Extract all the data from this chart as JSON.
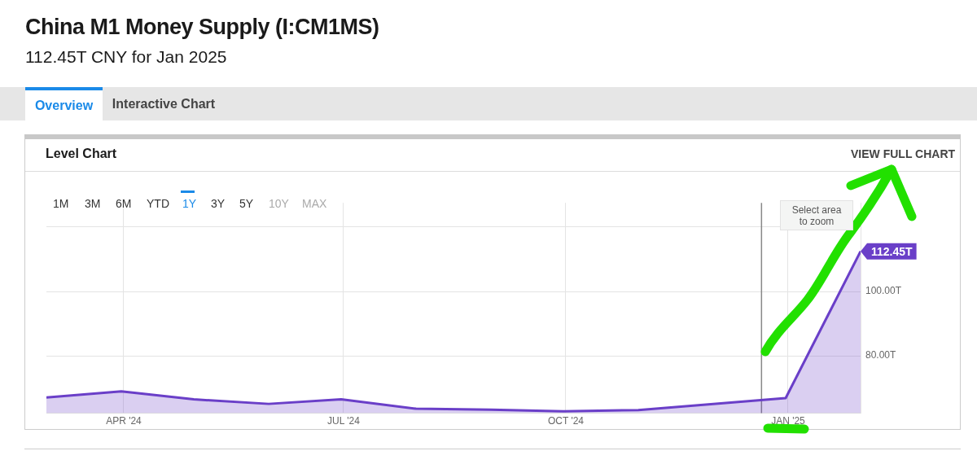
{
  "chart_data": {
    "type": "area",
    "title": "China M1 Money Supply (I:CM1MS)",
    "subtitle": "112.45T CNY for Jan 2025",
    "x": [
      "2024-02-29",
      "2024-03-31",
      "2024-04-30",
      "2024-05-31",
      "2024-06-30",
      "2024-07-31",
      "2024-08-31",
      "2024-09-30",
      "2024-10-31",
      "2024-11-30",
      "2024-12-31",
      "2025-01-31"
    ],
    "series": [
      {
        "color": "#6a3fc8",
        "values": [
          67.1,
          69.0,
          66.5,
          65.1,
          66.5,
          63.6,
          63.3,
          62.8,
          63.2,
          65.0,
          66.9,
          112.45
        ],
        "value_labels": [
          null,
          null,
          null,
          null,
          null,
          null,
          null,
          null,
          null,
          null,
          null,
          "112.45T"
        ]
      }
    ],
    "xlim": [
      "2024-02-29",
      "2025-01-31"
    ],
    "xticks": [
      {
        "value": "2024-04-01",
        "label": "APR '24"
      },
      {
        "value": "2024-07-01",
        "label": "JUL '24"
      },
      {
        "value": "2024-10-01",
        "label": "OCT '24"
      },
      {
        "value": "2025-01-01",
        "label": "JAN '25"
      }
    ],
    "ylim": [
      62.2,
      127.5
    ],
    "yticks": [
      {
        "value": 80,
        "label": "80.00T"
      },
      {
        "value": 100,
        "label": "100.00T"
      },
      {
        "value": 120,
        "label": null
      }
    ],
    "grid": true,
    "legend": false,
    "marker": "none",
    "ref_lines": [
      {
        "axis": "x",
        "value": "2024-12-21",
        "color": "#888888"
      }
    ],
    "annotations": [
      "Overview",
      "Interactive Chart",
      "Level Chart",
      "VIEW FULL CHART",
      "1M",
      "3M",
      "6M",
      "YTD",
      "1Y",
      "3Y",
      "5Y",
      "10Y",
      "MAX",
      "Select area to zoom"
    ]
  }
}
